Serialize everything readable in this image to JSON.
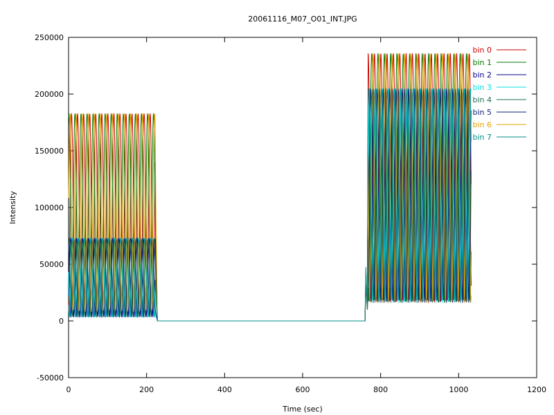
{
  "chart_data": {
    "type": "line",
    "title": "20061116_M07_O01_INT.JPG",
    "xlabel": "Time (sec)",
    "ylabel": "Intensity",
    "xlim": [
      0,
      1200
    ],
    "ylim": [
      -50000,
      250000
    ],
    "x_ticks": [
      0,
      200,
      400,
      600,
      800,
      1000,
      1200
    ],
    "y_ticks": [
      -50000,
      0,
      50000,
      100000,
      150000,
      200000,
      250000
    ],
    "grid": false,
    "legend_position": "top-right",
    "series": [
      {
        "name": "bin 0",
        "color": "#cc0000",
        "band": "high",
        "t0": 0.0
      },
      {
        "name": "bin 1",
        "color": "#007a00",
        "band": "high",
        "t0": 0.45
      },
      {
        "name": "bin 2",
        "color": "#00008b",
        "band": "low",
        "t0": 0.15
      },
      {
        "name": "bin 3",
        "color": "#00e0e0",
        "band": "low",
        "t0": 0.75
      },
      {
        "name": "bin 4",
        "color": "#1e6e50",
        "band": "low",
        "t0": 0.35
      },
      {
        "name": "bin 5",
        "color": "#0a1f7a",
        "band": "low",
        "t0": 0.6
      },
      {
        "name": "bin 6",
        "color": "#e6a000",
        "band": "high",
        "t0": 0.25
      },
      {
        "name": "bin 7",
        "color": "#008b8b",
        "band": "low",
        "t0": 0.9
      }
    ],
    "segment1": {
      "start": 0,
      "end": 228,
      "period": 15.5,
      "high": {
        "min": 8000,
        "max": 183000
      },
      "low": {
        "min": 3000,
        "max": 73000
      }
    },
    "flat": {
      "start": 228,
      "end": 760,
      "value": 0
    },
    "segment2": {
      "start": 760,
      "end": 1032,
      "period": 16.2,
      "high": {
        "min": 16000,
        "max": 236000
      },
      "low": {
        "min": 16000,
        "max": 205000
      }
    }
  }
}
